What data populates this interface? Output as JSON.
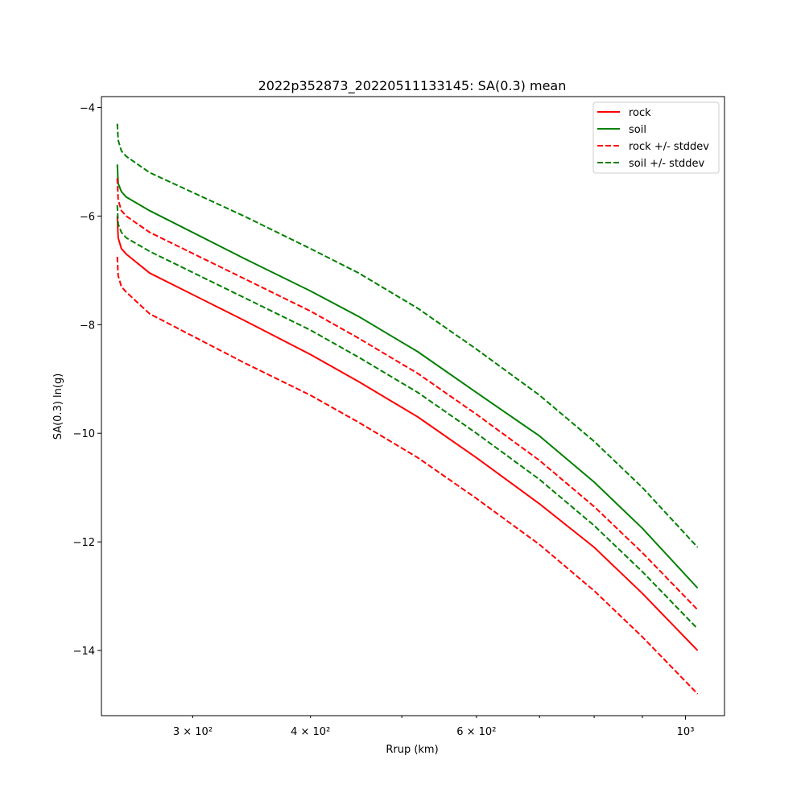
{
  "chart_data": {
    "type": "line",
    "title": "2022p352873_20220511133145: SA(0.3) mean",
    "xlabel": "Rrup (km)",
    "ylabel": "SA(0.3) ln(g)",
    "x_scale": "log",
    "xlim": [
      240,
      1100
    ],
    "ylim": [
      -15.2,
      -3.8
    ],
    "grid": false,
    "legend_position": "upper right",
    "x_major_ticks": [
      {
        "value": 1000,
        "label": "10³"
      }
    ],
    "x_minor_ticks": [
      {
        "value": 300,
        "label": "3 × 10²"
      },
      {
        "value": 400,
        "label": "4 × 10²"
      },
      {
        "value": 600,
        "label": "6 × 10²"
      },
      {
        "value": 500,
        "label": ""
      },
      {
        "value": 700,
        "label": ""
      },
      {
        "value": 800,
        "label": ""
      },
      {
        "value": 900,
        "label": ""
      }
    ],
    "y_ticks": [
      {
        "value": -4,
        "label": "−4"
      },
      {
        "value": -6,
        "label": "−6"
      },
      {
        "value": -8,
        "label": "−8"
      },
      {
        "value": -10,
        "label": "−10"
      },
      {
        "value": -12,
        "label": "−12"
      },
      {
        "value": -14,
        "label": "−14"
      }
    ],
    "series": [
      {
        "name": "rock",
        "color": "#ff0000",
        "style": "solid",
        "x": [
          249.5,
          250,
          252,
          255,
          270,
          340,
          400,
          450,
          520,
          600,
          700,
          800,
          900,
          1030
        ],
        "y": [
          -6.0,
          -6.4,
          -6.6,
          -6.7,
          -7.05,
          -7.92,
          -8.55,
          -9.05,
          -9.7,
          -10.45,
          -11.3,
          -12.1,
          -12.95,
          -14.0
        ]
      },
      {
        "name": "soil",
        "color": "#008000",
        "style": "solid",
        "x": [
          249.5,
          250,
          252,
          255,
          270,
          340,
          400,
          450,
          520,
          600,
          700,
          800,
          900,
          1030
        ],
        "y": [
          -5.05,
          -5.4,
          -5.55,
          -5.65,
          -5.9,
          -6.78,
          -7.38,
          -7.85,
          -8.5,
          -9.25,
          -10.05,
          -10.9,
          -11.75,
          -12.85
        ]
      },
      {
        "name": "rock +/- stddev",
        "color": "#ff0000",
        "style": "dashed",
        "x": [
          249.5,
          250,
          252,
          255,
          270,
          340,
          400,
          450,
          520,
          600,
          700,
          800,
          900,
          1030
        ],
        "y": [
          -5.3,
          -5.7,
          -5.9,
          -6.0,
          -6.3,
          -7.15,
          -7.75,
          -8.25,
          -8.9,
          -9.65,
          -10.5,
          -11.35,
          -12.2,
          -13.25
        ]
      },
      {
        "name": "",
        "color": "#ff0000",
        "style": "dashed",
        "x": [
          249.5,
          250,
          252,
          255,
          270,
          340,
          400,
          450,
          520,
          600,
          700,
          800,
          900,
          1030
        ],
        "y": [
          -6.75,
          -7.1,
          -7.3,
          -7.4,
          -7.8,
          -8.7,
          -9.3,
          -9.8,
          -10.45,
          -11.2,
          -12.05,
          -12.9,
          -13.75,
          -14.8
        ]
      },
      {
        "name": "soil +/- stddev",
        "color": "#008000",
        "style": "dashed",
        "x": [
          249.5,
          250,
          252,
          255,
          270,
          340,
          400,
          450,
          520,
          600,
          700,
          800,
          900,
          1030
        ],
        "y": [
          -4.3,
          -4.6,
          -4.8,
          -4.9,
          -5.2,
          -6.0,
          -6.6,
          -7.05,
          -7.7,
          -8.45,
          -9.3,
          -10.15,
          -11.0,
          -12.1
        ]
      },
      {
        "name": "",
        "color": "#008000",
        "style": "dashed",
        "x": [
          249.5,
          250,
          252,
          255,
          270,
          340,
          400,
          450,
          520,
          600,
          700,
          800,
          900,
          1030
        ],
        "y": [
          -5.8,
          -6.15,
          -6.3,
          -6.4,
          -6.65,
          -7.5,
          -8.1,
          -8.6,
          -9.25,
          -10.0,
          -10.85,
          -11.7,
          -12.55,
          -13.6
        ]
      }
    ]
  }
}
